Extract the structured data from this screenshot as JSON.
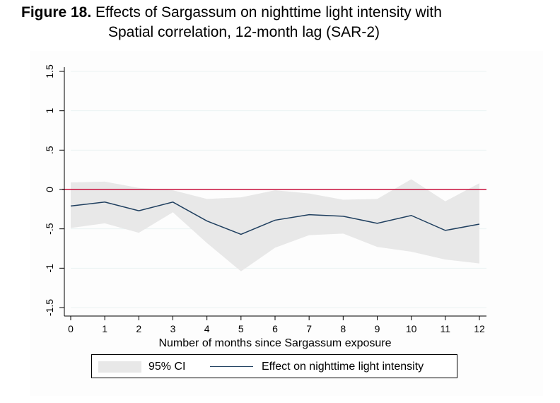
{
  "figure": {
    "label": "Figure 18.",
    "title_line1": "Effects of Sargassum on nighttime light intensity with",
    "title_line2": "Spatial correlation, 12-month lag (SAR-2)"
  },
  "colors": {
    "effect_line": "#1f3f5f",
    "ci_fill": "#e8e8e8",
    "zero_line": "#c8103c",
    "grid": "#eaf2f2"
  },
  "chart_data": {
    "type": "line",
    "title": "Effects of Sargassum on nighttime light intensity with Spatial correlation, 12-month lag (SAR-2)",
    "xlabel": "Number of months since Sargassum exposure",
    "ylabel": "",
    "x": [
      0,
      1,
      2,
      3,
      4,
      5,
      6,
      7,
      8,
      9,
      10,
      11,
      12
    ],
    "x_ticks": [
      "0",
      "1",
      "2",
      "3",
      "4",
      "5",
      "6",
      "7",
      "8",
      "9",
      "10",
      "11",
      "12"
    ],
    "y_ticks": [
      -1.5,
      -1,
      -0.5,
      0,
      0.5,
      1,
      1.5
    ],
    "y_tick_labels": [
      "-1.5",
      "-1",
      "-.5",
      "0",
      ".5",
      "1",
      "1.5"
    ],
    "ylim": [
      -1.55,
      1.55
    ],
    "xlim": [
      0,
      12
    ],
    "grid": true,
    "reference_line_y": 0,
    "series": [
      {
        "name": "Effect on nighttime light intensity",
        "values": [
          -0.21,
          -0.16,
          -0.27,
          -0.16,
          -0.4,
          -0.57,
          -0.39,
          -0.32,
          -0.34,
          -0.43,
          -0.33,
          -0.52,
          -0.44
        ]
      },
      {
        "name": "95% CI",
        "type": "band",
        "upper": [
          0.09,
          0.1,
          0.02,
          -0.01,
          -0.12,
          -0.1,
          -0.01,
          -0.05,
          -0.13,
          -0.12,
          0.13,
          -0.15,
          0.08
        ],
        "lower": [
          -0.49,
          -0.43,
          -0.55,
          -0.29,
          -0.68,
          -1.04,
          -0.74,
          -0.58,
          -0.56,
          -0.73,
          -0.79,
          -0.89,
          -0.94
        ]
      }
    ],
    "legend": {
      "position": "bottom",
      "ci_label": "95% CI",
      "line_label": "Effect on nighttime light intensity"
    }
  }
}
